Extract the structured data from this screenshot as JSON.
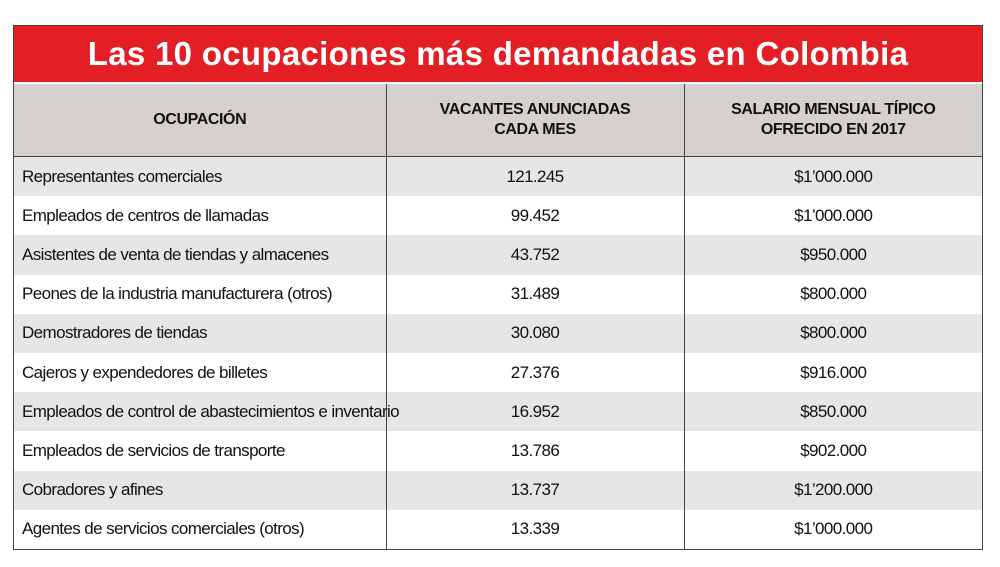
{
  "header": {
    "title": "Las 10 ocupaciones más demandadas en Colombia"
  },
  "table": {
    "columns": [
      "OCUPACIÓN",
      "VACANTES ANUNCIADAS CADA MES",
      "SALARIO MENSUAL TÍPICO OFRECIDO EN 2017"
    ],
    "rows": [
      [
        "Representantes comerciales",
        "121.245",
        "$1’000.000"
      ],
      [
        "Empleados de centros de llamadas",
        "99.452",
        "$1’000.000"
      ],
      [
        "Asistentes de venta de tiendas y almacenes",
        "43.752",
        "$950.000"
      ],
      [
        "Peones de la industria manufacturera (otros)",
        "31.489",
        "$800.000"
      ],
      [
        "Demostradores de tiendas",
        "30.080",
        "$800.000"
      ],
      [
        "Cajeros y expendedores de billetes",
        "27.376",
        "$916.000"
      ],
      [
        "Empleados de control de abastecimientos e inventario",
        "16.952",
        "$850.000"
      ],
      [
        "Empleados de servicios de transporte",
        "13.786",
        "$902.000"
      ],
      [
        "Cobradores y afines",
        "13.737",
        "$1’200.000"
      ],
      [
        "Agentes de servicios comerciales (otros)",
        "13.339",
        "$1’000.000"
      ]
    ]
  }
}
